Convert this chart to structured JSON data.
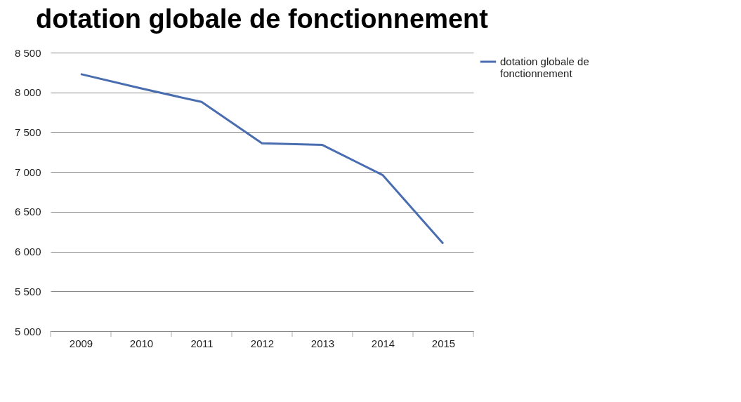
{
  "chart_data": {
    "type": "line",
    "title": "dotation globale de fonctionnement",
    "categories": [
      "2009",
      "2010",
      "2011",
      "2012",
      "2013",
      "2014",
      "2015"
    ],
    "series": [
      {
        "name": "dotation globale de fonctionnement",
        "color": "#4a6db0",
        "values": [
          8230,
          8050,
          7880,
          7360,
          7340,
          6960,
          6100
        ]
      }
    ],
    "ylim": [
      5000,
      8500
    ],
    "yticks": [
      {
        "value": 5000,
        "label": "5 000"
      },
      {
        "value": 5500,
        "label": "5 500"
      },
      {
        "value": 6000,
        "label": "6 000"
      },
      {
        "value": 6500,
        "label": "6 500"
      },
      {
        "value": 7000,
        "label": "7 000"
      },
      {
        "value": 7500,
        "label": "7 500"
      },
      {
        "value": 8000,
        "label": "8 000"
      },
      {
        "value": 8500,
        "label": "8 500"
      }
    ],
    "grid": "y",
    "legend": "right",
    "marker": "none",
    "line_style": "solid"
  }
}
